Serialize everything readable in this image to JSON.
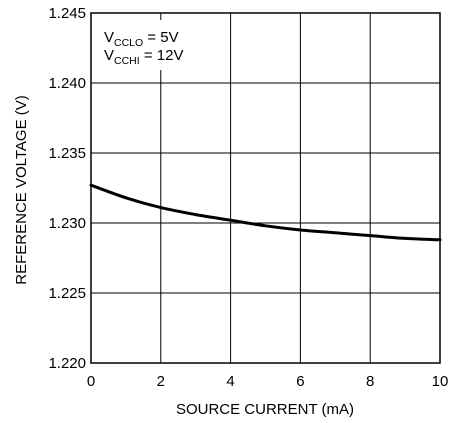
{
  "chart_data": {
    "type": "line",
    "title": "",
    "xlabel": "SOURCE CURRENT (mA)",
    "ylabel": "REFERENCE VOLTAGE (V)",
    "xlim": [
      0,
      10
    ],
    "ylim": [
      1.22,
      1.245
    ],
    "x_ticks": [
      "0",
      "2",
      "4",
      "6",
      "8",
      "10"
    ],
    "y_ticks": [
      "1.220",
      "1.225",
      "1.230",
      "1.235",
      "1.240",
      "1.245"
    ],
    "grid": true,
    "annotation": [
      {
        "main": "V",
        "sub": "CCLO",
        "rest": " = 5V"
      },
      {
        "main": "V",
        "sub": "CCHI",
        "rest": " = 12V"
      }
    ],
    "series": [
      {
        "x": [
          0,
          1,
          2,
          3,
          4,
          5,
          6,
          7,
          8,
          9,
          10
        ],
        "values": [
          1.2327,
          1.2318,
          1.2311,
          1.2306,
          1.2302,
          1.2298,
          1.2295,
          1.2293,
          1.2291,
          1.2289,
          1.2288
        ]
      }
    ]
  }
}
